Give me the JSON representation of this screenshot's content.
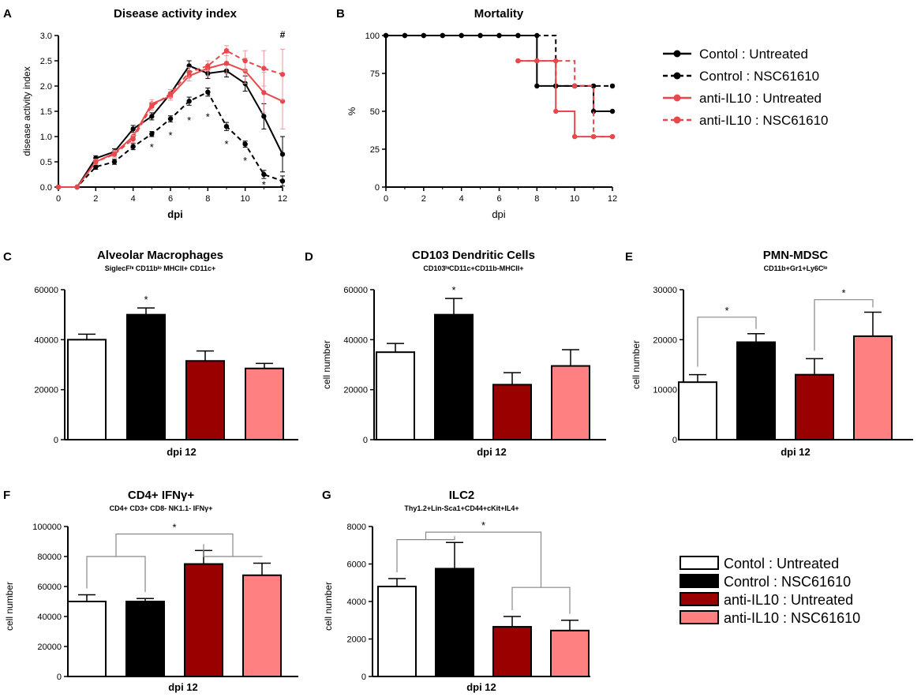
{
  "colors": {
    "black": "#000000",
    "red": "#e8474c",
    "red_light": "#e99a9c",
    "dark_red": "#990000",
    "pink": "#ff8080",
    "white": "#ffffff",
    "star": "#555555",
    "bracket": "#888888"
  },
  "legend_top": {
    "items": [
      {
        "label": "Contol : Untreated",
        "color": "#000000",
        "dashed": false
      },
      {
        "label": "Control : NSC61610",
        "color": "#000000",
        "dashed": true
      },
      {
        "label": "anti-IL10 : Untreated",
        "color": "#e8474c",
        "dashed": false
      },
      {
        "label": "anti-IL10 : NSC61610",
        "color": "#e8474c",
        "dashed": true
      }
    ]
  },
  "legend_bottom": {
    "items": [
      {
        "label": "Contol : Untreated",
        "fill": "#ffffff"
      },
      {
        "label": "Control : NSC61610",
        "fill": "#000000"
      },
      {
        "label": "anti-IL10 : Untreated",
        "fill": "#990000"
      },
      {
        "label": "anti-IL10 : NSC61610",
        "fill": "#ff8080"
      }
    ]
  },
  "chart_data": [
    {
      "panel": "A",
      "type": "line",
      "title": "Disease activity index",
      "xlabel": "dpi",
      "ylabel": "disease activity index",
      "xlim": [
        0,
        12
      ],
      "ylim": [
        0,
        3.0
      ],
      "xticks": [
        "0",
        "2",
        "4",
        "6",
        "8",
        "10",
        "12"
      ],
      "yticks": [
        "0.0",
        "0.5",
        "1.0",
        "1.5",
        "2.0",
        "2.5",
        "3.0"
      ],
      "x": [
        0,
        1,
        2,
        3,
        4,
        5,
        6,
        7,
        8,
        9,
        10,
        11,
        12
      ],
      "series": [
        {
          "name": "Contol : Untreated",
          "color": "#000000",
          "dashed": false,
          "values": [
            0,
            0,
            0.57,
            0.7,
            1.15,
            1.4,
            1.85,
            2.4,
            2.25,
            2.3,
            2.05,
            1.4,
            0.65
          ],
          "errors": [
            0,
            0,
            0.05,
            0.06,
            0.07,
            0.07,
            0.08,
            0.1,
            0.1,
            0.12,
            0.15,
            0.25,
            0.35
          ]
        },
        {
          "name": "Control : NSC61610",
          "color": "#000000",
          "dashed": true,
          "values": [
            0,
            0,
            0.4,
            0.5,
            0.8,
            1.05,
            1.35,
            1.7,
            1.88,
            1.2,
            0.85,
            0.25,
            0.12
          ],
          "errors": [
            0,
            0,
            0.05,
            0.05,
            0.06,
            0.05,
            0.06,
            0.08,
            0.08,
            0.08,
            0.06,
            0.08,
            0.1
          ]
        },
        {
          "name": "anti-IL10 : Untreated",
          "color": "#e8474c",
          "dashed": false,
          "values": [
            0,
            0,
            0.5,
            0.67,
            1.0,
            1.65,
            1.8,
            2.2,
            2.35,
            2.45,
            2.3,
            1.87,
            1.7
          ],
          "errors": [
            0,
            0,
            0.05,
            0.06,
            0.07,
            0.08,
            0.08,
            0.1,
            0.15,
            0.2,
            0.25,
            0.4,
            0.55
          ]
        },
        {
          "name": "anti-IL10 : NSC61610",
          "color": "#e8474c",
          "dashed": true,
          "values": [
            0,
            0,
            0.5,
            0.65,
            0.95,
            1.6,
            1.85,
            2.27,
            2.4,
            2.7,
            2.5,
            2.35,
            2.23
          ],
          "errors": [
            0,
            0,
            0.05,
            0.06,
            0.07,
            0.08,
            0.08,
            0.1,
            0.1,
            0.1,
            0.2,
            0.35,
            0.5
          ]
        }
      ],
      "annotations": [
        {
          "text": "*",
          "x": 5,
          "y": 0.72
        },
        {
          "text": "*",
          "x": 6,
          "y": 0.95
        },
        {
          "text": "*",
          "x": 7,
          "y": 1.25
        },
        {
          "text": "*",
          "x": 8,
          "y": 1.32
        },
        {
          "text": "*",
          "x": 9,
          "y": 0.78
        },
        {
          "text": "*",
          "x": 10,
          "y": 0.45
        },
        {
          "text": "*",
          "x": 11,
          "y": -0.02
        },
        {
          "text": "#",
          "x": 12,
          "y": 2.95
        }
      ]
    },
    {
      "panel": "B",
      "type": "line",
      "title": "Mortality",
      "xlabel": "dpi",
      "ylabel": "%",
      "xlim": [
        0,
        12
      ],
      "ylim": [
        0,
        100
      ],
      "xticks": [
        "0",
        "2",
        "4",
        "6",
        "8",
        "10",
        "12"
      ],
      "yticks": [
        "0",
        "25",
        "50",
        "75",
        "100"
      ],
      "series": [
        {
          "name": "Contol : Untreated",
          "color": "#000000",
          "dashed": false,
          "step": true,
          "points": [
            [
              0,
              100
            ],
            [
              1,
              100
            ],
            [
              2,
              100
            ],
            [
              3,
              100
            ],
            [
              4,
              100
            ],
            [
              5,
              100
            ],
            [
              6,
              100
            ],
            [
              7,
              100
            ],
            [
              8,
              66.7
            ],
            [
              9,
              66.7
            ],
            [
              10,
              66.7
            ],
            [
              11,
              50
            ],
            [
              12,
              50
            ]
          ]
        },
        {
          "name": "Control : NSC61610",
          "color": "#000000",
          "dashed": true,
          "step": true,
          "points": [
            [
              0,
              100
            ],
            [
              1,
              100
            ],
            [
              2,
              100
            ],
            [
              3,
              100
            ],
            [
              4,
              100
            ],
            [
              5,
              100
            ],
            [
              6,
              100
            ],
            [
              7,
              100
            ],
            [
              8,
              100
            ],
            [
              9,
              66.7
            ],
            [
              10,
              66.7
            ],
            [
              11,
              66.7
            ],
            [
              12,
              66.7
            ]
          ]
        },
        {
          "name": "anti-IL10 : Untreated",
          "color": "#e8474c",
          "dashed": false,
          "step": true,
          "points": [
            [
              7,
              83.3
            ],
            [
              8,
              83.3
            ],
            [
              9,
              50
            ],
            [
              10,
              33.3
            ],
            [
              11,
              33.3
            ],
            [
              12,
              33.3
            ]
          ]
        },
        {
          "name": "anti-IL10 : NSC61610",
          "color": "#e8474c",
          "dashed": true,
          "step": true,
          "points": [
            [
              7,
              83.3
            ],
            [
              8,
              83.3
            ],
            [
              9,
              83.3
            ],
            [
              10,
              66.7
            ],
            [
              11,
              33.3
            ],
            [
              12,
              33.3
            ]
          ]
        }
      ]
    },
    {
      "panel": "C",
      "type": "bar",
      "title": "Alveolar Macrophages",
      "subtitle": "SiglecFʰᶦ CD11bˡᵒ MHCII+ CD11c+",
      "xlabel": "dpi 12",
      "ylabel": "",
      "ylim": [
        0,
        60000
      ],
      "yticks": [
        "0",
        "20000",
        "40000",
        "60000"
      ],
      "categories": [
        "Contol : Untreated",
        "Control : NSC61610",
        "anti-IL10 : Untreated",
        "anti-IL10 : NSC61610"
      ],
      "values": [
        40000,
        50000,
        31500,
        28500
      ],
      "errors": [
        2200,
        2700,
        4000,
        2000
      ],
      "stars": [
        {
          "bar": 1,
          "text": "*"
        }
      ],
      "brackets": []
    },
    {
      "panel": "D",
      "type": "bar",
      "title": "CD103 Dendritic Cells",
      "subtitle": "CD103ʰᶦCD11c+CD11b-MHCII+",
      "xlabel": "dpi 12",
      "ylabel": "cell number",
      "ylim": [
        0,
        60000
      ],
      "yticks": [
        "0",
        "20000",
        "40000",
        "60000"
      ],
      "categories": [
        "Contol : Untreated",
        "Control : NSC61610",
        "anti-IL10 : Untreated",
        "anti-IL10 : NSC61610"
      ],
      "values": [
        35000,
        50000,
        22000,
        29500
      ],
      "errors": [
        3500,
        6500,
        4800,
        6500
      ],
      "stars": [
        {
          "bar": 1,
          "text": "*"
        }
      ],
      "brackets": []
    },
    {
      "panel": "E",
      "type": "bar",
      "title": "PMN-MDSC",
      "subtitle": "CD11b+Gr1+Ly6Cˡᵒ",
      "xlabel": "dpi 12",
      "ylabel": "cell number",
      "ylim": [
        0,
        30000
      ],
      "yticks": [
        "0",
        "10000",
        "20000",
        "30000"
      ],
      "categories": [
        "Contol : Untreated",
        "Control : NSC61610",
        "anti-IL10 : Untreated",
        "anti-IL10 : NSC61610"
      ],
      "values": [
        11500,
        19500,
        13000,
        20700
      ],
      "errors": [
        1500,
        1700,
        3200,
        4800
      ],
      "stars": [],
      "brackets": [
        {
          "from": 0,
          "to": 1,
          "y": 24500,
          "text": "*"
        },
        {
          "from": 2,
          "to": 3,
          "y": 28000,
          "text": "*"
        }
      ]
    },
    {
      "panel": "F",
      "type": "bar",
      "title": "CD4+ IFNγ+",
      "subtitle": "CD4+ CD3+ CD8- NK1.1- IFNγ+",
      "xlabel": "dpi 12",
      "ylabel": "cell number",
      "ylim": [
        0,
        100000
      ],
      "yticks": [
        "0",
        "20000",
        "40000",
        "60000",
        "80000",
        "100000"
      ],
      "categories": [
        "Contol : Untreated",
        "Control : NSC61610",
        "anti-IL10 : Untreated",
        "anti-IL10 : NSC61610"
      ],
      "values": [
        50000,
        50000,
        75000,
        67500
      ],
      "errors": [
        4500,
        2000,
        9000,
        8000
      ],
      "stars": [],
      "nested_bracket": {
        "left_pair": [
          0,
          1
        ],
        "right_pair": [
          2,
          3
        ],
        "pair_y": 80000,
        "top_y": 95000,
        "text": "*"
      }
    },
    {
      "panel": "G",
      "type": "bar",
      "title": "ILC2",
      "subtitle": "Thy1.2+Lin-Sca1+CD44+cKit+IL4+",
      "xlabel": "dpi 12",
      "ylabel": "cell number",
      "ylim": [
        0,
        8000
      ],
      "yticks": [
        "0",
        "2000",
        "4000",
        "6000",
        "8000"
      ],
      "categories": [
        "Contol : Untreated",
        "Control : NSC61610",
        "anti-IL10 : Untreated",
        "anti-IL10 : NSC61610"
      ],
      "values": [
        4800,
        5750,
        2650,
        2450
      ],
      "errors": [
        420,
        1400,
        550,
        550
      ],
      "stars": [],
      "nested_bracket": {
        "left_pair": [
          0,
          1
        ],
        "right_pair": [
          2,
          3
        ],
        "pair_y_left": 7300,
        "pair_y_right": 4750,
        "top_y": 7700,
        "text": "*"
      }
    }
  ]
}
